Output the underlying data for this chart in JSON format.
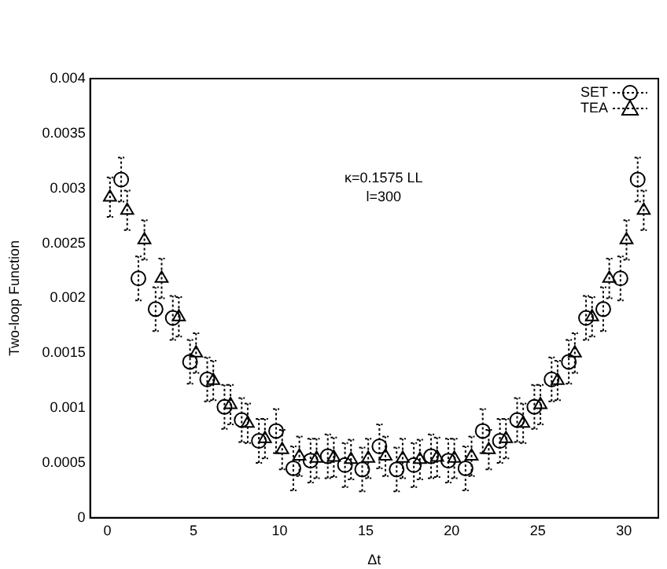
{
  "chart_data": {
    "type": "scatter",
    "xlabel": "Δt",
    "ylabel": "Two-loop Function",
    "xlim": [
      -1,
      32
    ],
    "xticks": [
      0,
      5,
      10,
      15,
      20,
      25,
      30
    ],
    "ylim": [
      0,
      0.004
    ],
    "yticks": [
      0,
      0.0005,
      0.001,
      0.0015,
      0.002,
      0.0025,
      0.003,
      0.0035,
      0.004
    ],
    "grid": false,
    "legend": "top right",
    "annotations": [
      "κ=0.1575 LL",
      "l=300"
    ],
    "series": [
      {
        "name": "SET",
        "color": "#000000",
        "marker": "circle",
        "x": [
          0.8,
          1.8,
          2.8,
          3.8,
          4.8,
          5.8,
          6.8,
          7.8,
          8.8,
          9.8,
          10.8,
          11.8,
          12.8,
          13.8,
          14.8,
          15.8,
          16.8,
          17.8,
          18.8,
          19.8,
          20.8,
          21.8,
          22.8,
          23.8,
          24.8,
          25.8,
          26.8,
          27.8,
          28.8,
          29.8,
          30.8
        ],
        "values": [
          0.00308,
          0.00218,
          0.0019,
          0.00182,
          0.00142,
          0.00126,
          0.00101,
          0.00089,
          0.0007,
          0.00079,
          0.00045,
          0.00052,
          0.00056,
          0.00048,
          0.00044,
          0.00065,
          0.00044,
          0.00048,
          0.00056,
          0.00052,
          0.00045,
          0.00079,
          0.0007,
          0.00089,
          0.00101,
          0.00126,
          0.00142,
          0.00182,
          0.0019,
          0.00218,
          0.00308
        ],
        "errors": [
          0.0002,
          0.0002,
          0.0002,
          0.0002,
          0.0002,
          0.0002,
          0.0002,
          0.0002,
          0.0002,
          0.0002,
          0.0002,
          0.0002,
          0.0002,
          0.0002,
          0.0002,
          0.0002,
          0.0002,
          0.0002,
          0.0002,
          0.0002,
          0.0002,
          0.0002,
          0.0002,
          0.0002,
          0.0002,
          0.0002,
          0.0002,
          0.0002,
          0.0002,
          0.0002,
          0.0002
        ]
      },
      {
        "name": "TEA",
        "color": "#000000",
        "marker": "triangle",
        "x": [
          0.15,
          1.15,
          2.15,
          3.15,
          4.15,
          5.15,
          6.15,
          7.15,
          8.15,
          9.15,
          10.15,
          11.15,
          12.15,
          13.15,
          14.15,
          15.15,
          16.15,
          17.15,
          18.15,
          19.15,
          20.15,
          21.15,
          22.15,
          23.15,
          24.15,
          25.15,
          26.15,
          27.15,
          28.15,
          29.15,
          30.15,
          31.15
        ],
        "values": [
          0.00292,
          0.0028,
          0.00253,
          0.00218,
          0.00183,
          0.0015,
          0.00125,
          0.00103,
          0.00086,
          0.00072,
          0.00062,
          0.00056,
          0.00054,
          0.00055,
          0.00053,
          0.00054,
          0.00056,
          0.00054,
          0.00053,
          0.00055,
          0.00054,
          0.00056,
          0.00062,
          0.00072,
          0.00086,
          0.00103,
          0.00125,
          0.0015,
          0.00183,
          0.00218,
          0.00253,
          0.0028
        ],
        "errors": [
          0.00018,
          0.00018,
          0.00018,
          0.00018,
          0.00018,
          0.00018,
          0.00018,
          0.00018,
          0.00018,
          0.00018,
          0.00018,
          0.00018,
          0.00018,
          0.00018,
          0.00018,
          0.00018,
          0.00018,
          0.00018,
          0.00018,
          0.00018,
          0.00018,
          0.00018,
          0.00018,
          0.00018,
          0.00018,
          0.00018,
          0.00018,
          0.00018,
          0.00018,
          0.00018,
          0.00018,
          0.00018
        ]
      }
    ]
  }
}
